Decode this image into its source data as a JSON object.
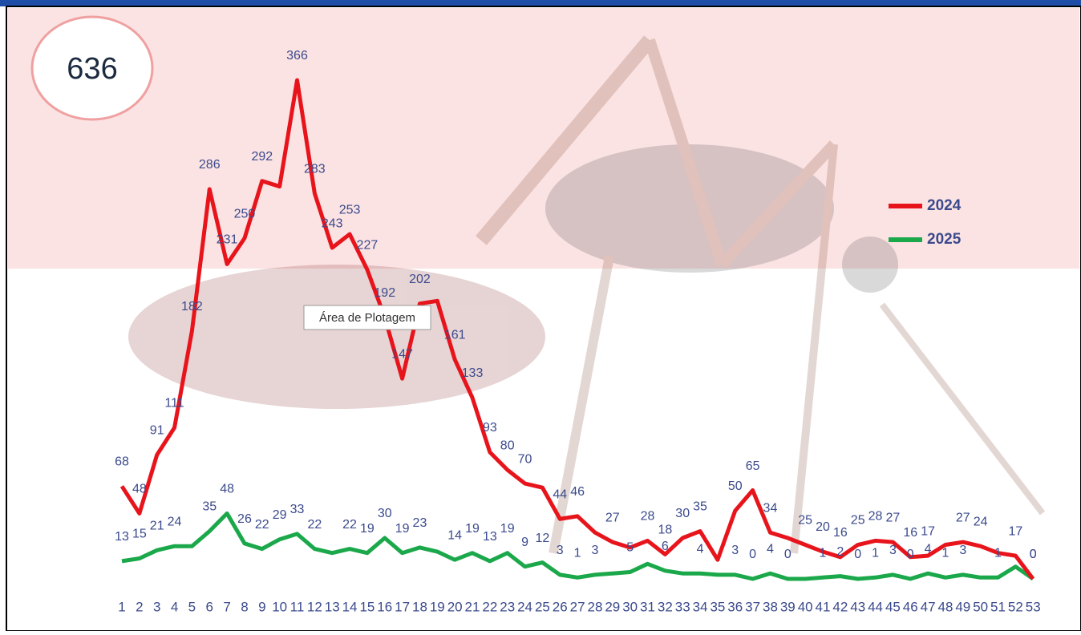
{
  "counter": "636",
  "tooltip": "Área de Plotagem",
  "chart_data": {
    "type": "line",
    "categories": [
      1,
      2,
      3,
      4,
      5,
      6,
      7,
      8,
      9,
      10,
      11,
      12,
      13,
      14,
      15,
      16,
      17,
      18,
      19,
      20,
      21,
      22,
      23,
      24,
      25,
      26,
      27,
      28,
      29,
      30,
      31,
      32,
      33,
      34,
      35,
      36,
      37,
      38,
      39,
      40,
      41,
      42,
      43,
      44,
      45,
      46,
      47,
      48,
      49,
      50,
      51,
      52,
      53
    ],
    "series": [
      {
        "name": "2024",
        "color": "#e8141c",
        "values": [
          68,
          48,
          91,
          111,
          182,
          286,
          231,
          250,
          292,
          288,
          366,
          283,
          243,
          253,
          227,
          192,
          147,
          202,
          204,
          161,
          133,
          93,
          80,
          70,
          67,
          44,
          46,
          34,
          27,
          23,
          28,
          18,
          30,
          35,
          14,
          50,
          65,
          34,
          30,
          25,
          20,
          16,
          25,
          28,
          27,
          16,
          17,
          25,
          27,
          24,
          19,
          17,
          0
        ],
        "value_labels": [
          "68",
          "48",
          "91",
          "111",
          "182",
          "286",
          "231",
          "250",
          "292",
          null,
          "366",
          "283",
          "243",
          "253",
          "227",
          "192",
          "147",
          "202",
          null,
          "161",
          "133",
          "93",
          "80",
          "70",
          null,
          "44",
          "46",
          null,
          "27",
          null,
          "28",
          "18",
          "30",
          "35",
          null,
          "50",
          "65",
          "34",
          null,
          "25",
          "20",
          "16",
          "25",
          "28",
          "27",
          "16",
          "17",
          null,
          "27",
          "24",
          null,
          "17",
          "0"
        ]
      },
      {
        "name": "2025",
        "color": "#1aa84a",
        "values": [
          13,
          15,
          21,
          24,
          24,
          35,
          48,
          26,
          22,
          29,
          33,
          22,
          19,
          22,
          19,
          30,
          19,
          23,
          20,
          14,
          19,
          13,
          19,
          9,
          12,
          3,
          1,
          3,
          4,
          5,
          11,
          6,
          4,
          4,
          3,
          3,
          0,
          4,
          0,
          0,
          1,
          2,
          0,
          1,
          3,
          0,
          4,
          1,
          3,
          1,
          1,
          9,
          0
        ],
        "value_labels": [
          "13",
          "15",
          "21",
          "24",
          null,
          "35",
          "48",
          "26",
          "22",
          "29",
          "33",
          "22",
          null,
          "22",
          "19",
          "30",
          "19",
          "23",
          null,
          "14",
          "19",
          "13",
          "19",
          "9",
          "12",
          "3",
          "1",
          "3",
          null,
          "5",
          null,
          "6",
          null,
          "4",
          null,
          "3",
          "0",
          "4",
          "0",
          null,
          "1",
          "2",
          "0",
          "1",
          "3",
          "0",
          "4",
          "1",
          "3",
          null,
          "1",
          null,
          "0"
        ]
      }
    ]
  }
}
